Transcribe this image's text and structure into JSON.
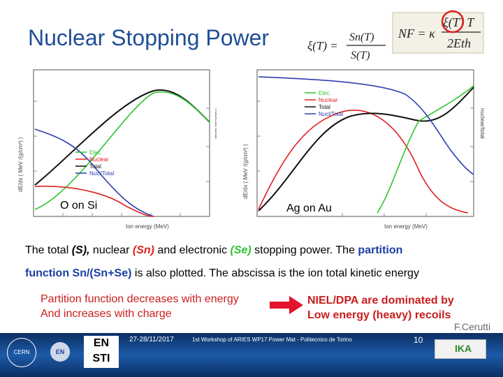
{
  "slide": {
    "title": "Nuclear Stopping Power",
    "formula_xi": {
      "lhs": "ξ(T) =",
      "num": "Sn(T)",
      "den": "S(T)"
    },
    "formula_nf": {
      "lhs": "NF = κ",
      "num": "ξ(T) T",
      "den": "2Eth"
    },
    "plot_left_label": "O on Si",
    "plot_right_label": "Ag on Au",
    "caption_line1": {
      "p1": "The total ",
      "s": "(S),",
      "p2": " nuclear ",
      "sn": "(Sn)",
      "p3": " and electronic ",
      "se": "(Se)",
      "p4": " stopping power. The ",
      "partition": "partition"
    },
    "caption_line2": {
      "func": "function Sn/(Sn+Se)",
      "rest": " is also plotted.  The abscissa is the ion total kinetic energy"
    },
    "red_text_line1": "Partition function decreases with energy",
    "red_text_line2": "And increases with charge",
    "niel_line1": "NIEL/DPA are dominated by",
    "niel_line2": "Low energy (heavy) recoils",
    "author": "F.Cerutti"
  },
  "plots": {
    "legend": [
      "Elec.",
      "Nuclear",
      "Total",
      "Nucl/Total"
    ],
    "xlabel": "Ion energy (MeV)",
    "ylabel_left": "dE/dx ( MeV /(g/cm²) )",
    "ylabel_right": "nuclear/total",
    "colors": {
      "elec": "#2ec42e",
      "nuclear": "#e02020",
      "total": "#111111",
      "ratio": "#2d3fb0"
    }
  },
  "footer": {
    "date": "27-28/11/2017",
    "workshop": "1st Workshop of ARIES WP17 Power Mat - Politecnico de Torino",
    "page": "10",
    "logo_en_sti_top": "EN",
    "logo_en_sti_bottom": "STI",
    "logo_eu": "IKA",
    "logo_cern": "CERN",
    "logo_en": "EN"
  }
}
